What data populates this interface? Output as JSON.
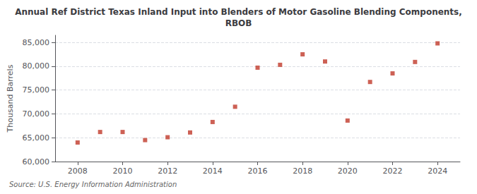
{
  "chart_data": {
    "type": "scatter",
    "title": "Annual Ref District Texas Inland Input into Blenders of Motor Gasoline Blending Components,\nRBOB",
    "ylabel": "Thousand Barrels",
    "source": "Source: U.S. Energy Information Administration",
    "x": [
      2008,
      2009,
      2010,
      2011,
      2012,
      2013,
      2014,
      2015,
      2016,
      2017,
      2018,
      2019,
      2020,
      2021,
      2022,
      2023,
      2024
    ],
    "values": [
      64000,
      66200,
      66200,
      64500,
      65100,
      66100,
      68300,
      71500,
      79700,
      80300,
      82500,
      81000,
      68600,
      76700,
      78500,
      80900,
      84800
    ],
    "color": "#c0392b",
    "marker": "square",
    "xlim": [
      2007,
      2025
    ],
    "xticks": [
      2008,
      2010,
      2012,
      2014,
      2016,
      2018,
      2020,
      2022,
      2024
    ],
    "ylim": [
      60000,
      86500
    ],
    "yticks": [
      {
        "value": 60000,
        "label": "60,000"
      },
      {
        "value": 65000,
        "label": "65,000"
      },
      {
        "value": 70000,
        "label": "70,000"
      },
      {
        "value": 75000,
        "label": "75,000"
      },
      {
        "value": 80000,
        "label": "80,000"
      },
      {
        "value": 85000,
        "label": "85,000"
      }
    ],
    "grid": true
  }
}
